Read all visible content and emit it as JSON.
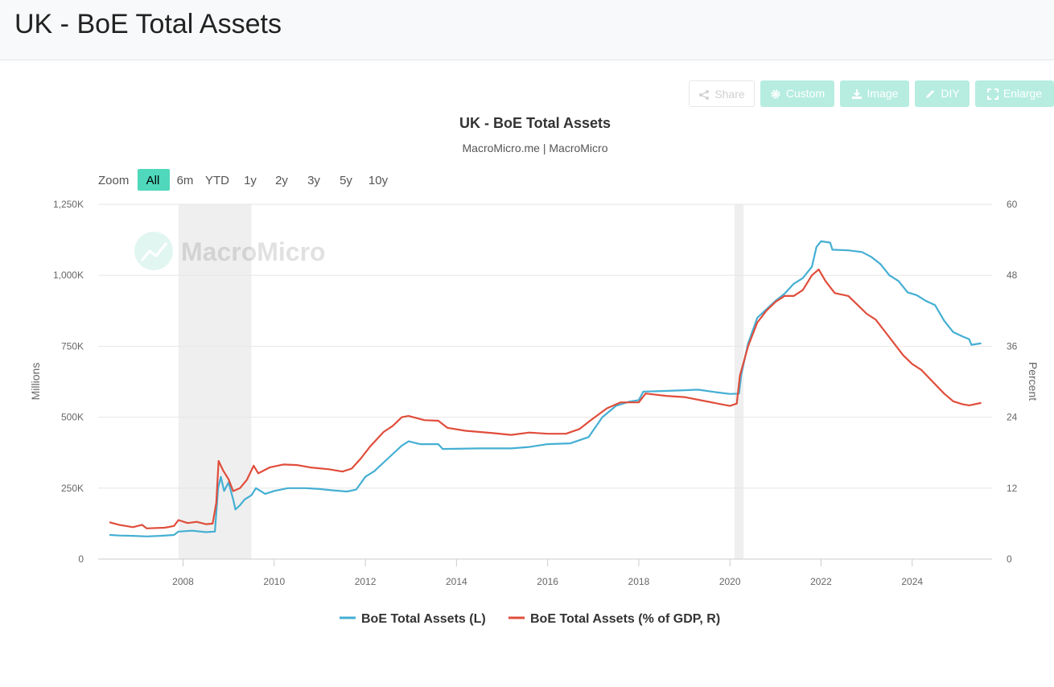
{
  "page": {
    "title": "UK - BoE Total Assets"
  },
  "toolbar": {
    "share_label": "Share",
    "custom_label": "Custom",
    "image_label": "Image",
    "diy_label": "DIY",
    "enlarge_label": "Enlarge"
  },
  "watermark": {
    "text": "MacroMicro"
  },
  "zoom": {
    "label": "Zoom",
    "options": [
      "All",
      "6m",
      "YTD",
      "1y",
      "2y",
      "3y",
      "5y",
      "10y"
    ],
    "selected": "All"
  },
  "colors": {
    "left_series": "#44afd3",
    "right_series": "#e04d3b",
    "recession": "#efefef",
    "zoom_selected": "#4fd8bb",
    "toolbar_button": "#b6ede0"
  },
  "chart_data": {
    "type": "line",
    "title": "UK - BoE Total Assets",
    "subtitle": "MacroMicro.me | MacroMicro",
    "ylabel": "Millions",
    "y2label": "Percent",
    "xlim": [
      2006.3,
      2025.7
    ],
    "ylim": [
      0,
      1250000
    ],
    "y2lim": [
      0,
      60
    ],
    "x_ticks": [
      2008,
      2010,
      2012,
      2014,
      2016,
      2018,
      2020,
      2022,
      2024
    ],
    "y_ticks": [
      {
        "value": 0,
        "label": "0"
      },
      {
        "value": 250000,
        "label": "250K"
      },
      {
        "value": 500000,
        "label": "500K"
      },
      {
        "value": 750000,
        "label": "750K"
      },
      {
        "value": 1000000,
        "label": "1,000K"
      },
      {
        "value": 1250000,
        "label": "1,250K"
      }
    ],
    "y2_ticks": [
      0,
      12,
      24,
      36,
      48,
      60
    ],
    "grid": true,
    "legend_position": "bottom-center",
    "recession_bands": [
      [
        2007.9,
        2009.5
      ],
      [
        2020.1,
        2020.3
      ]
    ],
    "series": [
      {
        "name": "BoE Total Assets (L)",
        "axis": "left",
        "color": "#44afd3",
        "points": [
          [
            2006.4,
            85000
          ],
          [
            2006.6,
            83000
          ],
          [
            2006.9,
            82000
          ],
          [
            2007.2,
            80000
          ],
          [
            2007.5,
            82000
          ],
          [
            2007.8,
            85000
          ],
          [
            2007.9,
            97000
          ],
          [
            2008.2,
            100000
          ],
          [
            2008.5,
            95000
          ],
          [
            2008.7,
            97000
          ],
          [
            2008.77,
            250000
          ],
          [
            2008.83,
            290000
          ],
          [
            2008.9,
            240000
          ],
          [
            2009.0,
            270000
          ],
          [
            2009.1,
            210000
          ],
          [
            2009.15,
            175000
          ],
          [
            2009.25,
            190000
          ],
          [
            2009.35,
            210000
          ],
          [
            2009.5,
            225000
          ],
          [
            2009.6,
            250000
          ],
          [
            2009.8,
            230000
          ],
          [
            2010.0,
            240000
          ],
          [
            2010.3,
            250000
          ],
          [
            2010.7,
            250000
          ],
          [
            2011.0,
            247000
          ],
          [
            2011.3,
            242000
          ],
          [
            2011.6,
            238000
          ],
          [
            2011.8,
            245000
          ],
          [
            2012.0,
            290000
          ],
          [
            2012.2,
            310000
          ],
          [
            2012.4,
            340000
          ],
          [
            2012.6,
            370000
          ],
          [
            2012.8,
            400000
          ],
          [
            2012.95,
            415000
          ],
          [
            2013.2,
            405000
          ],
          [
            2013.6,
            405000
          ],
          [
            2013.7,
            388000
          ],
          [
            2014.5,
            390000
          ],
          [
            2015.2,
            390000
          ],
          [
            2015.6,
            395000
          ],
          [
            2016.0,
            405000
          ],
          [
            2016.5,
            408000
          ],
          [
            2016.9,
            430000
          ],
          [
            2017.2,
            500000
          ],
          [
            2017.5,
            540000
          ],
          [
            2017.8,
            555000
          ],
          [
            2018.0,
            560000
          ],
          [
            2018.1,
            590000
          ],
          [
            2018.5,
            592000
          ],
          [
            2019.0,
            595000
          ],
          [
            2019.3,
            597000
          ],
          [
            2019.7,
            588000
          ],
          [
            2020.0,
            582000
          ],
          [
            2020.2,
            583000
          ],
          [
            2020.25,
            650000
          ],
          [
            2020.4,
            760000
          ],
          [
            2020.6,
            850000
          ],
          [
            2020.8,
            880000
          ],
          [
            2021.0,
            910000
          ],
          [
            2021.2,
            935000
          ],
          [
            2021.4,
            970000
          ],
          [
            2021.6,
            990000
          ],
          [
            2021.8,
            1030000
          ],
          [
            2021.9,
            1100000
          ],
          [
            2022.0,
            1120000
          ],
          [
            2022.2,
            1115000
          ],
          [
            2022.25,
            1090000
          ],
          [
            2022.6,
            1088000
          ],
          [
            2022.9,
            1082000
          ],
          [
            2023.1,
            1065000
          ],
          [
            2023.3,
            1040000
          ],
          [
            2023.5,
            1000000
          ],
          [
            2023.7,
            980000
          ],
          [
            2023.9,
            940000
          ],
          [
            2024.1,
            930000
          ],
          [
            2024.3,
            910000
          ],
          [
            2024.5,
            895000
          ],
          [
            2024.7,
            840000
          ],
          [
            2024.9,
            800000
          ],
          [
            2025.1,
            785000
          ],
          [
            2025.25,
            775000
          ],
          [
            2025.3,
            755000
          ],
          [
            2025.5,
            760000
          ]
        ]
      },
      {
        "name": "BoE Total Assets (% of GDP, R)",
        "axis": "right",
        "color": "#e04d3b",
        "points": [
          [
            2006.4,
            6.2
          ],
          [
            2006.6,
            5.8
          ],
          [
            2006.9,
            5.4
          ],
          [
            2007.1,
            5.8
          ],
          [
            2007.2,
            5.2
          ],
          [
            2007.6,
            5.3
          ],
          [
            2007.8,
            5.6
          ],
          [
            2007.9,
            6.6
          ],
          [
            2008.1,
            6.1
          ],
          [
            2008.3,
            6.3
          ],
          [
            2008.5,
            5.9
          ],
          [
            2008.65,
            6.0
          ],
          [
            2008.73,
            9.5
          ],
          [
            2008.78,
            16.6
          ],
          [
            2008.88,
            15.0
          ],
          [
            2009.0,
            13.5
          ],
          [
            2009.1,
            11.5
          ],
          [
            2009.25,
            12.0
          ],
          [
            2009.4,
            13.4
          ],
          [
            2009.55,
            15.8
          ],
          [
            2009.65,
            14.5
          ],
          [
            2009.9,
            15.5
          ],
          [
            2010.2,
            16.0
          ],
          [
            2010.5,
            15.9
          ],
          [
            2010.8,
            15.5
          ],
          [
            2011.2,
            15.2
          ],
          [
            2011.5,
            14.8
          ],
          [
            2011.7,
            15.3
          ],
          [
            2011.9,
            17.0
          ],
          [
            2012.1,
            19.0
          ],
          [
            2012.4,
            21.5
          ],
          [
            2012.6,
            22.5
          ],
          [
            2012.8,
            24.0
          ],
          [
            2012.95,
            24.2
          ],
          [
            2013.3,
            23.5
          ],
          [
            2013.6,
            23.4
          ],
          [
            2013.8,
            22.2
          ],
          [
            2014.2,
            21.7
          ],
          [
            2014.8,
            21.3
          ],
          [
            2015.2,
            21.0
          ],
          [
            2015.6,
            21.4
          ],
          [
            2016.0,
            21.2
          ],
          [
            2016.4,
            21.2
          ],
          [
            2016.7,
            22.0
          ],
          [
            2016.95,
            23.5
          ],
          [
            2017.3,
            25.5
          ],
          [
            2017.6,
            26.5
          ],
          [
            2018.0,
            26.5
          ],
          [
            2018.15,
            28.0
          ],
          [
            2018.6,
            27.6
          ],
          [
            2019.0,
            27.4
          ],
          [
            2019.4,
            26.8
          ],
          [
            2019.8,
            26.2
          ],
          [
            2020.0,
            25.9
          ],
          [
            2020.15,
            26.3
          ],
          [
            2020.22,
            31.0
          ],
          [
            2020.4,
            36.0
          ],
          [
            2020.6,
            40.0
          ],
          [
            2020.8,
            42.0
          ],
          [
            2021.0,
            43.5
          ],
          [
            2021.2,
            44.5
          ],
          [
            2021.4,
            44.5
          ],
          [
            2021.6,
            45.5
          ],
          [
            2021.8,
            48.0
          ],
          [
            2021.95,
            49.0
          ],
          [
            2022.1,
            47.0
          ],
          [
            2022.3,
            45.0
          ],
          [
            2022.6,
            44.5
          ],
          [
            2022.8,
            43.0
          ],
          [
            2023.0,
            41.5
          ],
          [
            2023.2,
            40.5
          ],
          [
            2023.4,
            38.5
          ],
          [
            2023.6,
            36.5
          ],
          [
            2023.8,
            34.5
          ],
          [
            2024.0,
            33.0
          ],
          [
            2024.2,
            32.0
          ],
          [
            2024.45,
            30.0
          ],
          [
            2024.7,
            28.0
          ],
          [
            2024.9,
            26.7
          ],
          [
            2025.1,
            26.2
          ],
          [
            2025.25,
            26.0
          ],
          [
            2025.5,
            26.4
          ]
        ]
      }
    ]
  }
}
